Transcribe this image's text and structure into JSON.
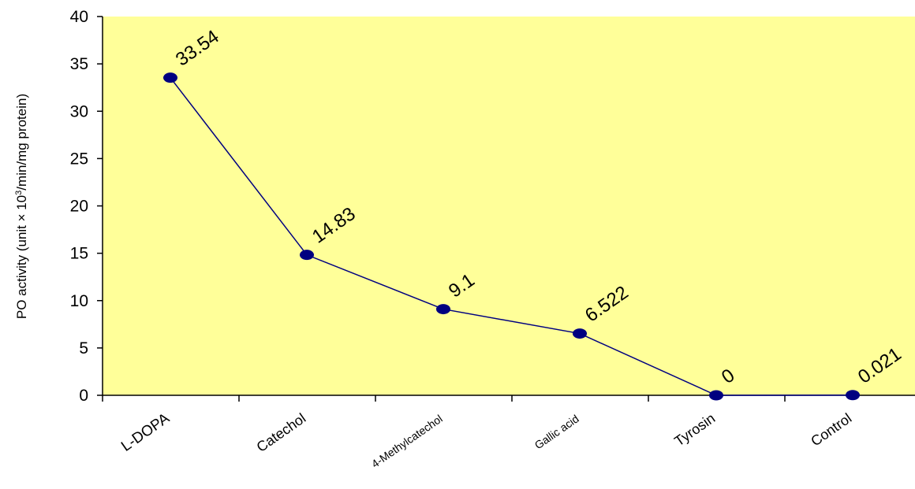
{
  "chart_data": {
    "type": "line",
    "title": "",
    "xlabel": "",
    "ylabel": "PO activity (unit × 10³/min/mg protein)",
    "ylabel_parts": {
      "before": "PO activity (unit × 10",
      "sup": "3",
      "after": "/min/mg protein)"
    },
    "ylim": [
      0,
      40
    ],
    "yticks": [
      0,
      5,
      10,
      15,
      20,
      25,
      30,
      35,
      40
    ],
    "grid": false,
    "legend": "none",
    "categories": [
      "L-DOPA",
      "Catechol",
      "4-Methylcatechol",
      "Gallic acid",
      "Tyrosin",
      "Control"
    ],
    "series": [
      {
        "values": [
          33.54,
          14.83,
          9.1,
          6.522,
          0,
          0.021
        ],
        "labels": [
          "33.54",
          "14.83",
          "9.1",
          "6.522",
          "0",
          "0.021"
        ]
      }
    ],
    "colors": {
      "plot_background": "#FFFF99",
      "line": "#000080",
      "marker": "#000080",
      "axis": "#000000"
    }
  }
}
